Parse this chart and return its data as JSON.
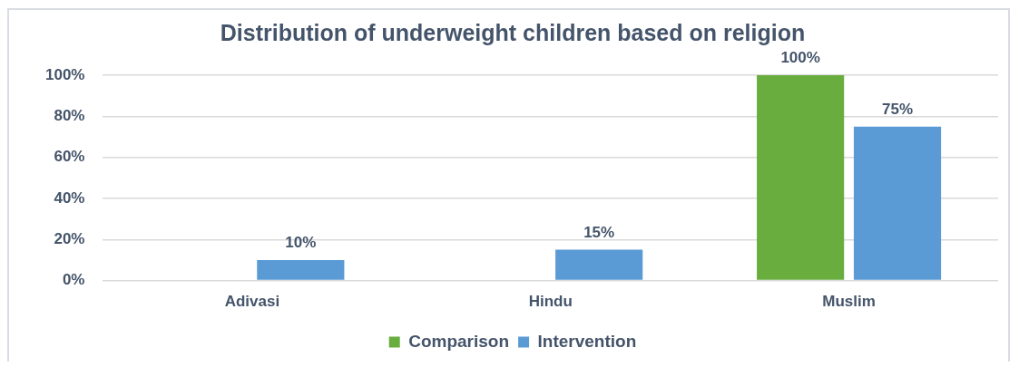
{
  "chart_data": {
    "type": "bar",
    "title": "Distribution of underweight children based on religion",
    "categories": [
      "Adivasi",
      "Hindu",
      "Muslim"
    ],
    "series": [
      {
        "name": "Comparison",
        "color": "#6aad3f",
        "values": [
          0,
          0,
          100
        ],
        "value_labels": [
          null,
          null,
          "100%"
        ]
      },
      {
        "name": "Intervention",
        "color": "#5b9bd5",
        "values": [
          10,
          15,
          75
        ],
        "value_labels": [
          "10%",
          "15%",
          "75%"
        ]
      }
    ],
    "ylim": [
      0,
      100
    ],
    "yticks": [
      {
        "value": 0,
        "label": "0%"
      },
      {
        "value": 20,
        "label": "20%"
      },
      {
        "value": 40,
        "label": "40%"
      },
      {
        "value": 60,
        "label": "60%"
      },
      {
        "value": 80,
        "label": "80%"
      },
      {
        "value": 100,
        "label": "100%"
      }
    ],
    "grid": "y",
    "legend": "bottom"
  }
}
